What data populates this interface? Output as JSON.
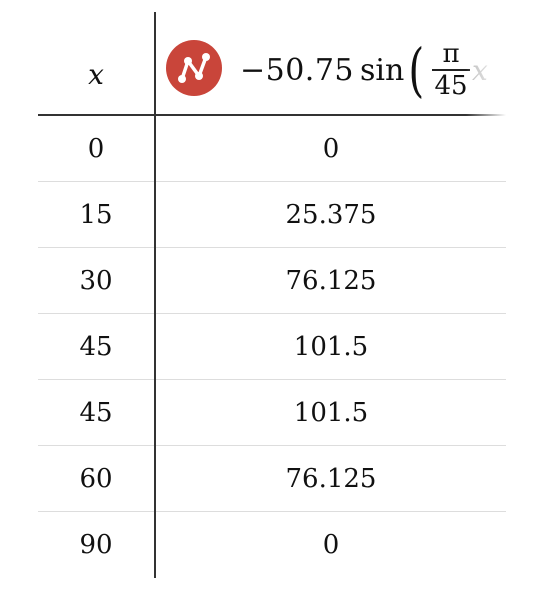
{
  "table": {
    "x_header": "x",
    "expression": {
      "icon": "regression-icon",
      "icon_color": "#c9453a",
      "coefficient": "−50.75",
      "function": "sin",
      "open_paren": "(",
      "fraction_numerator": "π",
      "fraction_denominator": "45",
      "variable": "x"
    },
    "rows": [
      {
        "x": "0",
        "y": "0"
      },
      {
        "x": "15",
        "y": "25.375"
      },
      {
        "x": "30",
        "y": "76.125"
      },
      {
        "x": "45",
        "y": "101.5"
      },
      {
        "x": "45",
        "y": "101.5"
      },
      {
        "x": "60",
        "y": "76.125"
      },
      {
        "x": "90",
        "y": "0"
      }
    ]
  }
}
